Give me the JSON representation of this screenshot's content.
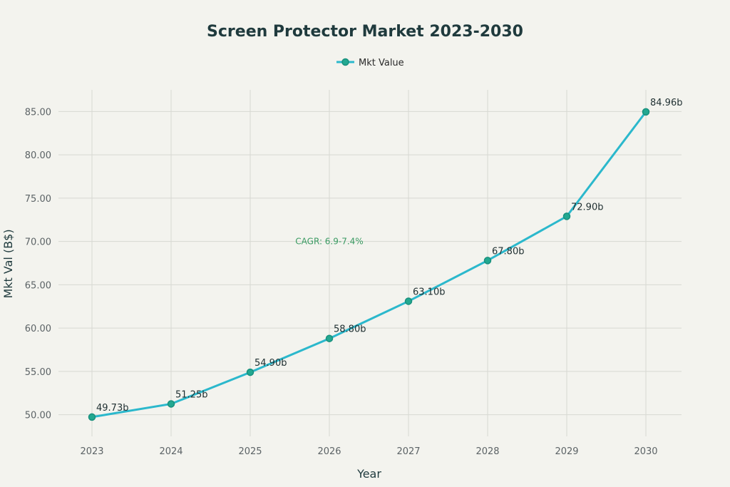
{
  "chart_data": {
    "type": "line",
    "title": "Screen Protector Market 2023-2030",
    "xlabel": "Year",
    "ylabel": "Mkt Val (B$)",
    "legend": {
      "placement": "top-center"
    },
    "grid": true,
    "ylim": [
      47.5,
      87.5
    ],
    "yticks": [
      "50.00",
      "55.00",
      "60.00",
      "65.00",
      "70.00",
      "75.00",
      "80.00",
      "85.00"
    ],
    "categories": [
      "2023",
      "2024",
      "2025",
      "2026",
      "2027",
      "2028",
      "2029",
      "2030"
    ],
    "series": [
      {
        "name": "Mkt Value",
        "values": [
          49.73,
          51.25,
          54.9,
          58.8,
          63.1,
          67.8,
          72.9,
          84.96
        ],
        "labels": [
          "49.73b",
          "51.25b",
          "54.90b",
          "58.80b",
          "63.10b",
          "67.80b",
          "72.90b",
          "84.96b"
        ],
        "color": "#2bb8cc",
        "marker_color": "#23a891"
      }
    ],
    "annotations": [
      {
        "text": "CAGR: 6.9-7.4%",
        "x": 2026,
        "y": 70,
        "color": "#3a9a62"
      }
    ]
  }
}
